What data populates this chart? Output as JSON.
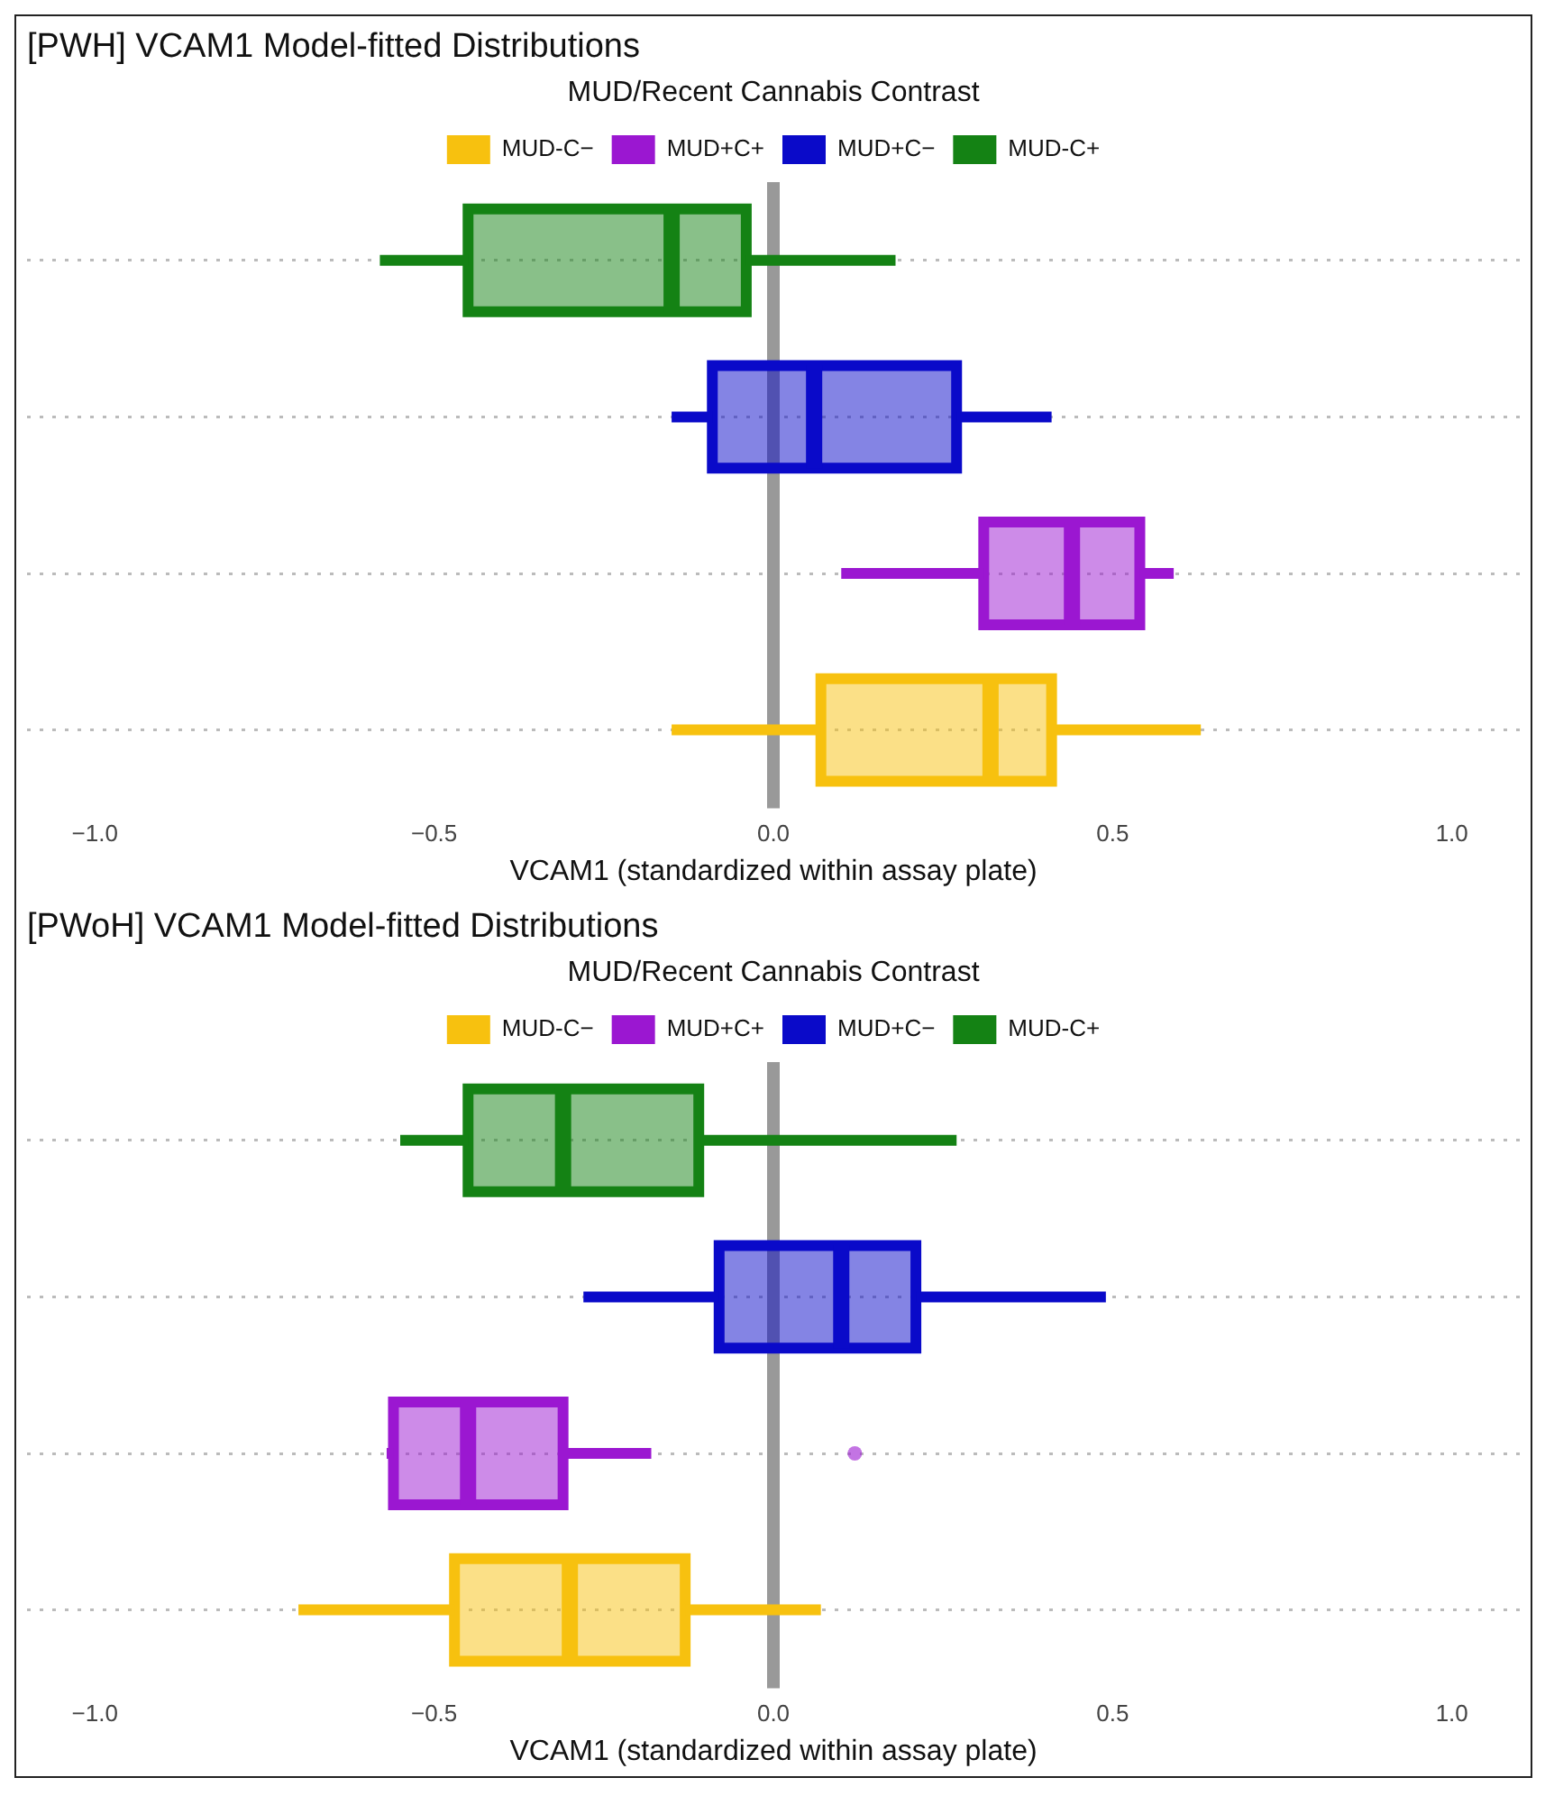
{
  "chart_data": [
    {
      "type": "box",
      "orientation": "horizontal",
      "title": "[PWH] VCAM1 Model-fitted Distributions",
      "xlabel": "VCAM1 (standardized within assay plate)",
      "legend_title": "MUD/Recent Cannabis Contrast",
      "legend": "top",
      "grid": "y",
      "tick_labels": "x",
      "categories": [
        null,
        null,
        null,
        null
      ],
      "xlim": [
        -1.1,
        1.1
      ],
      "xticks": [
        {
          "value": -1,
          "label": "−1.0"
        },
        {
          "value": -0.5,
          "label": "−0.5"
        },
        {
          "value": 0,
          "label": "0.0"
        },
        {
          "value": 0.5,
          "label": "0.5"
        },
        {
          "value": 1,
          "label": "1.0"
        }
      ],
      "ref_lines": [
        {
          "axis": "x",
          "value": 0,
          "color": "#999999"
        }
      ],
      "series": [
        {
          "name": "MUD-C−",
          "color": "#f7c10f",
          "boxes": [
            null,
            null,
            null,
            {
              "low": -0.15,
              "q1": 0.07,
              "median": 0.32,
              "q3": 0.41,
              "high": 0.63
            }
          ]
        },
        {
          "name": "MUD+C+",
          "color": "#9b17d1",
          "boxes": [
            null,
            null,
            {
              "low": 0.1,
              "q1": 0.31,
              "median": 0.44,
              "q3": 0.54,
              "high": 0.59
            },
            null
          ]
        },
        {
          "name": "MUD+C−",
          "color": "#0a0ac9",
          "boxes": [
            null,
            {
              "low": -0.15,
              "q1": -0.09,
              "median": 0.06,
              "q3": 0.27,
              "high": 0.41
            },
            null,
            null
          ]
        },
        {
          "name": "MUD-C+",
          "color": "#148214",
          "boxes": [
            {
              "low": -0.58,
              "q1": -0.45,
              "median": -0.15,
              "q3": -0.04,
              "high": 0.18
            },
            null,
            null,
            null
          ]
        }
      ]
    },
    {
      "type": "box",
      "orientation": "horizontal",
      "title": "[PWoH] VCAM1 Model-fitted Distributions",
      "xlabel": "VCAM1 (standardized within assay plate)",
      "legend_title": "MUD/Recent Cannabis Contrast",
      "legend": "top",
      "grid": "y",
      "tick_labels": "x",
      "categories": [
        null,
        null,
        null,
        null
      ],
      "xlim": [
        -1.1,
        1.1
      ],
      "xticks": [
        {
          "value": -1,
          "label": "−1.0"
        },
        {
          "value": -0.5,
          "label": "−0.5"
        },
        {
          "value": 0,
          "label": "0.0"
        },
        {
          "value": 0.5,
          "label": "0.5"
        },
        {
          "value": 1,
          "label": "1.0"
        }
      ],
      "ref_lines": [
        {
          "axis": "x",
          "value": 0,
          "color": "#999999"
        }
      ],
      "series": [
        {
          "name": "MUD-C−",
          "color": "#f7c10f",
          "boxes": [
            null,
            null,
            null,
            {
              "low": -0.7,
              "q1": -0.47,
              "median": -0.3,
              "q3": -0.13,
              "high": 0.07
            }
          ]
        },
        {
          "name": "MUD+C+",
          "color": "#9b17d1",
          "boxes": [
            null,
            null,
            {
              "low": -0.57,
              "q1": -0.56,
              "median": -0.45,
              "q3": -0.31,
              "high": -0.18,
              "outliers": [
                0.12
              ]
            },
            null
          ]
        },
        {
          "name": "MUD+C−",
          "color": "#0a0ac9",
          "boxes": [
            null,
            {
              "low": -0.28,
              "q1": -0.08,
              "median": 0.1,
              "q3": 0.21,
              "high": 0.49
            },
            null,
            null
          ]
        },
        {
          "name": "MUD-C+",
          "color": "#148214",
          "boxes": [
            {
              "low": -0.55,
              "q1": -0.45,
              "median": -0.31,
              "q3": -0.11,
              "high": 0.27
            },
            null,
            null,
            null
          ]
        }
      ]
    }
  ]
}
